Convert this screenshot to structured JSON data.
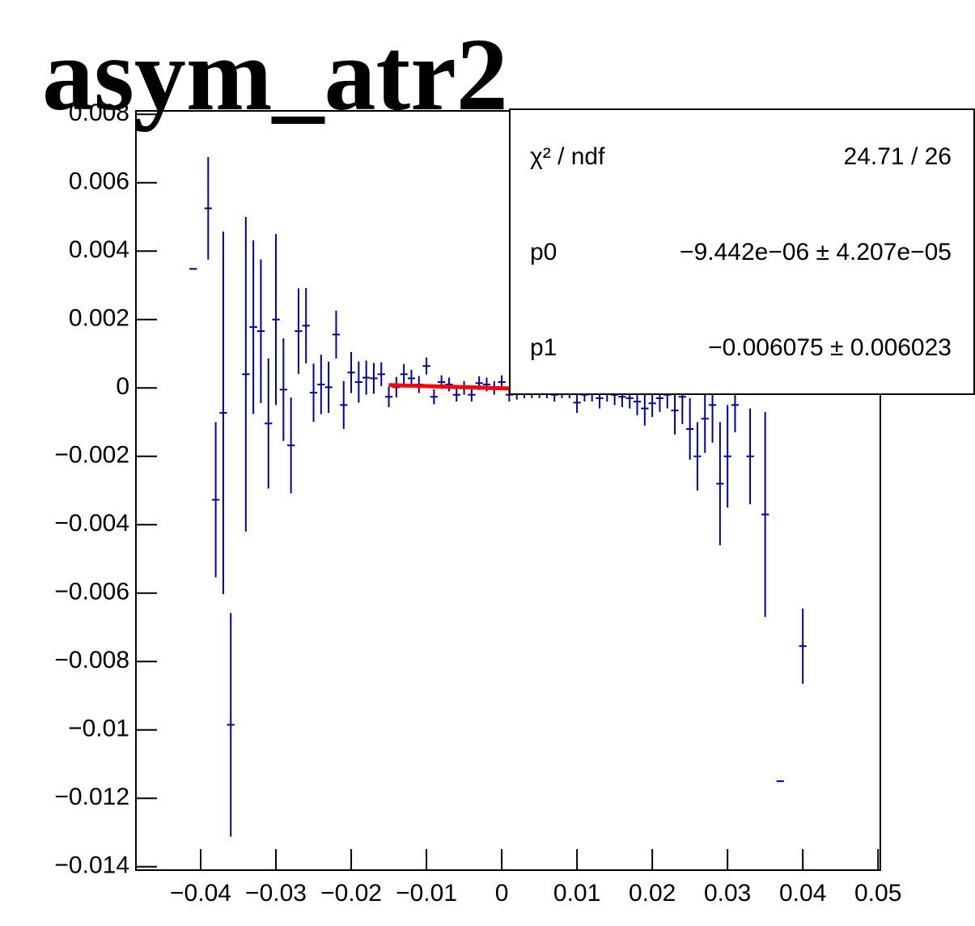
{
  "chart_data": {
    "type": "errorbar",
    "title": "asym_atr2",
    "xlim": [
      -0.0486,
      0.0503
    ],
    "ylim": [
      -0.0141,
      0.0081
    ],
    "xticks": [
      {
        "value": -0.04,
        "label": "−0.04"
      },
      {
        "value": -0.03,
        "label": "−0.03"
      },
      {
        "value": -0.02,
        "label": "−0.02"
      },
      {
        "value": -0.01,
        "label": "−0.01"
      },
      0,
      0.01,
      0.02,
      0.03,
      0.04,
      0.05
    ],
    "yticks": [
      {
        "value": -0.014,
        "label": "−0.014"
      },
      {
        "value": -0.012,
        "label": "−0.012"
      },
      {
        "value": -0.01,
        "label": "−0.01"
      },
      {
        "value": -0.008,
        "label": "−0.008"
      },
      {
        "value": -0.006,
        "label": "−0.006"
      },
      {
        "value": -0.004,
        "label": "−0.004"
      },
      {
        "value": -0.002,
        "label": "−0.002"
      },
      0,
      0.002,
      0.004,
      0.006,
      0.008
    ],
    "series": [
      {
        "color": "#000099",
        "x": [
          -0.041,
          -0.039,
          -0.038,
          -0.037,
          -0.036,
          -0.034,
          -0.033,
          -0.032,
          -0.031,
          -0.03,
          -0.029,
          -0.028,
          -0.027,
          -0.026,
          -0.025,
          -0.024,
          -0.023,
          -0.022,
          -0.021,
          -0.02,
          -0.019,
          -0.018,
          -0.017,
          -0.016,
          -0.015,
          -0.014,
          -0.013,
          -0.012,
          -0.011,
          -0.01,
          -0.009,
          -0.008,
          -0.007,
          -0.006,
          -0.005,
          -0.004,
          -0.003,
          -0.002,
          -0.001,
          0.0,
          0.001,
          0.002,
          0.003,
          0.004,
          0.005,
          0.006,
          0.007,
          0.008,
          0.009,
          0.01,
          0.011,
          0.012,
          0.013,
          0.014,
          0.015,
          0.016,
          0.017,
          0.018,
          0.019,
          0.02,
          0.021,
          0.022,
          0.023,
          0.024,
          0.025,
          0.026,
          0.027,
          0.028,
          0.029,
          0.03,
          0.031,
          0.033,
          0.035,
          0.037,
          0.04
        ],
        "values": [
          0.00348,
          0.00525,
          -0.00327,
          -0.00073,
          -0.00985,
          0.0004,
          0.00178,
          0.00166,
          -0.00104,
          0.002,
          -5e-05,
          -0.00168,
          0.00166,
          0.00182,
          -0.00014,
          0.0001,
          2e-05,
          0.00156,
          -0.0005,
          0.00045,
          0.00017,
          0.0003,
          0.00028,
          0.0004,
          -0.00026,
          2e-05,
          0.0004,
          0.00028,
          0.0001,
          0.00064,
          -0.00026,
          0.00017,
          0.0001,
          -0.0002,
          0.0,
          -0.0002,
          0.00014,
          0.0001,
          0.0,
          0.00017,
          -0.0002,
          -0.00014,
          -0.0001,
          -0.0001,
          -0.0001,
          -0.0001,
          -0.0002,
          -0.0001,
          -0.0001,
          -0.00043,
          -0.0002,
          -0.0001,
          -0.0003,
          -0.0001,
          -0.0002,
          -0.00026,
          -0.0003,
          -0.0004,
          -0.0006,
          -0.00045,
          -0.0003,
          -0.0002,
          -0.00066,
          -0.00026,
          -0.0012,
          -0.002,
          -0.0009,
          -0.0005,
          -0.0028,
          -0.002,
          -0.0005,
          -0.002,
          -0.0037,
          -0.0115,
          -0.00755
        ],
        "errors": [
          0.0,
          0.0015,
          0.00227,
          0.0053,
          0.00327,
          0.0046,
          0.00254,
          0.0021,
          0.0019,
          0.0025,
          0.0015,
          0.0014,
          0.00125,
          0.0011,
          0.00085,
          0.00087,
          0.00075,
          0.0007,
          0.0007,
          0.0006,
          0.0006,
          0.0005,
          0.00045,
          0.00035,
          0.0003,
          0.0003,
          0.0003,
          0.00025,
          0.00025,
          0.00025,
          0.00022,
          0.0002,
          0.0002,
          0.0002,
          0.0002,
          0.0002,
          0.0002,
          0.0002,
          0.0002,
          0.0002,
          0.0002,
          0.0002,
          0.0002,
          0.0002,
          0.0002,
          0.0002,
          0.0002,
          0.0002,
          0.0002,
          0.0003,
          0.0002,
          0.0003,
          0.0003,
          0.0003,
          0.0003,
          0.0003,
          0.0003,
          0.0004,
          0.0005,
          0.0004,
          0.0004,
          0.0004,
          0.0007,
          0.0008,
          0.0009,
          0.001,
          0.001,
          0.0011,
          0.0018,
          0.0015,
          0.0008,
          0.0014,
          0.003,
          0.0,
          0.0011
        ],
        "bin_width": 0.001
      }
    ],
    "fit": {
      "color": "#ff0000",
      "xlim": [
        -0.015,
        0.015
      ],
      "p0": -9.442e-06,
      "p1": -0.006075
    },
    "stats": [
      {
        "label": "χ² / ndf",
        "value": "24.71 / 26"
      },
      {
        "label": "p0",
        "value": "−9.442e−06 ± 4.207e−05"
      },
      {
        "label": "p1",
        "value": "−0.006075 ± 0.006023"
      }
    ]
  }
}
